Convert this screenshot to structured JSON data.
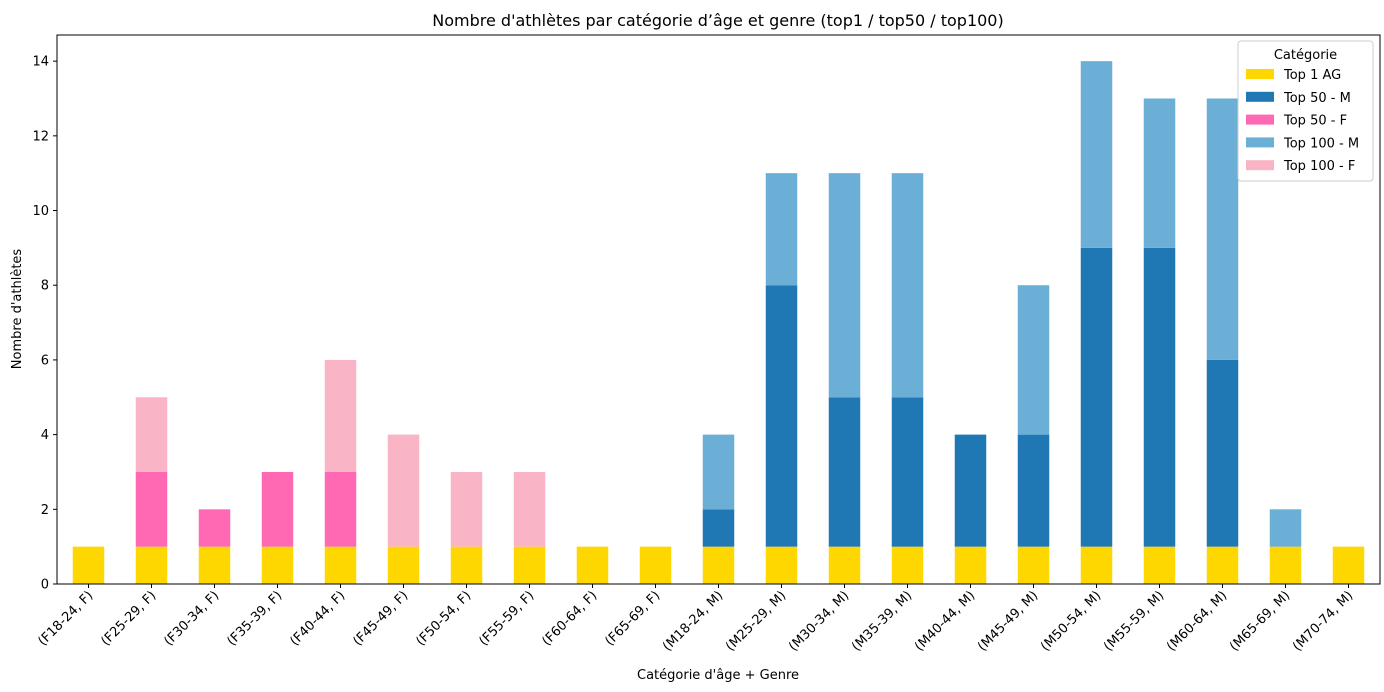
{
  "chart_data": {
    "type": "bar",
    "stacked": true,
    "title": "Nombre d'athlètes par catégorie d’âge et genre (top1 / top50 / top100)",
    "xlabel": "Catégorie d'âge + Genre",
    "ylabel": "Nombre d'athlètes",
    "ylim": [
      0,
      14.7
    ],
    "yticks": [
      0,
      2,
      4,
      6,
      8,
      10,
      12,
      14
    ],
    "grid": false,
    "legend": {
      "title": "Catégorie",
      "position": "top-right"
    },
    "categories": [
      "(F18-24, F)",
      "(F25-29, F)",
      "(F30-34, F)",
      "(F35-39, F)",
      "(F40-44, F)",
      "(F45-49, F)",
      "(F50-54, F)",
      "(F55-59, F)",
      "(F60-64, F)",
      "(F65-69, F)",
      "(M18-24, M)",
      "(M25-29, M)",
      "(M30-34, M)",
      "(M35-39, M)",
      "(M40-44, M)",
      "(M45-49, M)",
      "(M50-54, M)",
      "(M55-59, M)",
      "(M60-64, M)",
      "(M65-69, M)",
      "(M70-74, M)"
    ],
    "series": [
      {
        "name": "Top 1 AG",
        "color": "#FFD700",
        "values": [
          1,
          1,
          1,
          1,
          1,
          1,
          1,
          1,
          1,
          1,
          1,
          1,
          1,
          1,
          1,
          1,
          1,
          1,
          1,
          1,
          1
        ]
      },
      {
        "name": "Top 50 - M",
        "color": "#1F77B4",
        "values": [
          0,
          0,
          0,
          0,
          0,
          0,
          0,
          0,
          0,
          0,
          1,
          7,
          4,
          4,
          3,
          3,
          8,
          8,
          5,
          0,
          0
        ]
      },
      {
        "name": "Top 50 - F",
        "color": "#FF69B4",
        "values": [
          0,
          2,
          1,
          2,
          2,
          0,
          0,
          0,
          0,
          0,
          0,
          0,
          0,
          0,
          0,
          0,
          0,
          0,
          0,
          0,
          0
        ]
      },
      {
        "name": "Top 100 - M",
        "color": "#6BAED6",
        "values": [
          0,
          0,
          0,
          0,
          0,
          0,
          0,
          0,
          0,
          0,
          2,
          3,
          6,
          6,
          0,
          4,
          5,
          4,
          7,
          1,
          0
        ]
      },
      {
        "name": "Top 100 - F",
        "color": "#F9B4C6",
        "values": [
          0,
          2,
          0,
          0,
          3,
          3,
          2,
          2,
          0,
          0,
          0,
          0,
          0,
          0,
          0,
          0,
          0,
          0,
          0,
          0,
          0
        ]
      }
    ]
  }
}
